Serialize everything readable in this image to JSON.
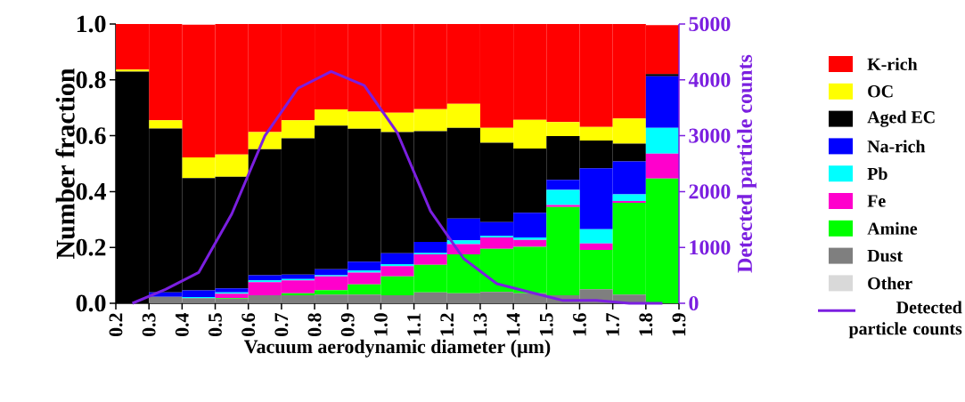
{
  "chart_data": {
    "type": "bar",
    "stacked": true,
    "xlabel": "Vacuum aerodynamic diameter (µm)",
    "ylabel": "Number fraction",
    "y2label": "Detected particle counts",
    "legend": "right",
    "x": [
      0.25,
      0.35,
      0.45,
      0.55,
      0.65,
      0.75,
      0.85,
      0.95,
      1.05,
      1.15,
      1.25,
      1.35,
      1.45,
      1.55,
      1.65,
      1.75,
      1.85
    ],
    "xlim": [
      0.2,
      1.9
    ],
    "xticks": [
      {
        "value": 0.2,
        "label": "0.2"
      },
      {
        "value": 0.3,
        "label": "0.3"
      },
      {
        "value": 0.4,
        "label": "0.4"
      },
      {
        "value": 0.5,
        "label": "0.5"
      },
      {
        "value": 0.6,
        "label": "0.6"
      },
      {
        "value": 0.7,
        "label": "0.7"
      },
      {
        "value": 0.8,
        "label": "0.8"
      },
      {
        "value": 0.9,
        "label": "0.9"
      },
      {
        "value": 1.0,
        "label": "1.0"
      },
      {
        "value": 1.1,
        "label": "1.1"
      },
      {
        "value": 1.2,
        "label": "1.2"
      },
      {
        "value": 1.3,
        "label": "1.3"
      },
      {
        "value": 1.4,
        "label": "1.4"
      },
      {
        "value": 1.5,
        "label": "1.5"
      },
      {
        "value": 1.6,
        "label": "1.6"
      },
      {
        "value": 1.7,
        "label": "1.7"
      },
      {
        "value": 1.8,
        "label": "1.8"
      },
      {
        "value": 1.9,
        "label": "1.9"
      }
    ],
    "ylim": [
      0,
      1
    ],
    "yticks": [
      {
        "value": 0,
        "label": "0.0"
      },
      {
        "value": 0.2,
        "label": "0.2"
      },
      {
        "value": 0.4,
        "label": "0.4"
      },
      {
        "value": 0.6,
        "label": "0.6"
      },
      {
        "value": 0.8,
        "label": "0.8"
      },
      {
        "value": 1,
        "label": "1.0"
      }
    ],
    "y2lim": [
      0,
      5000
    ],
    "y2ticks": [
      0,
      1000,
      2000,
      3000,
      4000,
      5000
    ],
    "series": [
      {
        "name": "Other",
        "color": "#d9d9d9",
        "values": [
          0,
          0,
          0,
          0,
          0,
          0,
          0,
          0,
          0,
          0,
          0,
          0,
          0,
          0,
          0,
          0,
          0
        ]
      },
      {
        "name": "Dust",
        "color": "#7f7f7f",
        "values": [
          0,
          0.023,
          0.018,
          0.016,
          0.029,
          0.029,
          0.031,
          0.031,
          0.029,
          0.039,
          0.036,
          0.041,
          0.036,
          0.029,
          0.05,
          0.031,
          null
        ]
      },
      {
        "name": "Amine",
        "color": "#00ff00",
        "values": [
          0,
          0,
          null,
          0.002,
          0,
          0.007,
          0.016,
          0.037,
          0.067,
          0.099,
          0.139,
          0.154,
          0.166,
          0.316,
          0.141,
          0.329,
          0.447
        ]
      },
      {
        "name": "Fe",
        "color": "#ff00cc",
        "values": [
          0,
          0,
          0,
          0.016,
          0.047,
          0.046,
          0.049,
          0.042,
          0.037,
          0.037,
          0.037,
          0.041,
          0.025,
          0.007,
          0.023,
          0.006,
          0.089
        ]
      },
      {
        "name": "Pb",
        "color": "#00ffff",
        "values": [
          0,
          0,
          0.004,
          0.005,
          0.006,
          0.005,
          0.004,
          0.007,
          0.007,
          0.005,
          0.013,
          0.005,
          0.009,
          0.054,
          0.051,
          0.024,
          0.092
        ]
      },
      {
        "name": "Na-rich",
        "color": "#0000ff",
        "values": [
          0,
          0.016,
          0.024,
          0.014,
          0.018,
          0.016,
          0.022,
          0.032,
          0.039,
          0.04,
          0.078,
          0.05,
          0.088,
          0.036,
          0.218,
          0.118,
          0.185
        ]
      },
      {
        "name": "Aged EC",
        "color": "#000000",
        "values": [
          0.83,
          0.587,
          0.402,
          0.4,
          0.452,
          0.488,
          0.514,
          0.476,
          0.434,
          0.396,
          0.325,
          0.284,
          0.23,
          0.157,
          0.1,
          0.064,
          0.008
        ]
      },
      {
        "name": "OC",
        "color": "#ffff00",
        "values": [
          0.007,
          0.029,
          0.074,
          0.08,
          0.061,
          0.064,
          0.058,
          0.061,
          0.069,
          0.079,
          0.086,
          0.053,
          0.103,
          0.05,
          0.048,
          0.09,
          0
        ]
      },
      {
        "name": "K-rich",
        "color": "#ff0000",
        "values": [
          0.163,
          0.345,
          0.476,
          0.467,
          0.387,
          0.345,
          0.306,
          0.314,
          0.318,
          0.305,
          0.286,
          0.372,
          0.343,
          0.351,
          0.369,
          0.338,
          0.175
        ]
      },
      {
        "name": "Detected particle counts",
        "type": "line",
        "axis": "y2",
        "color": "#7b1fe0",
        "values": [
          0,
          250,
          550,
          1600,
          3000,
          3850,
          4150,
          3900,
          3050,
          1650,
          800,
          350,
          200,
          50,
          50,
          0,
          0
        ]
      }
    ]
  }
}
